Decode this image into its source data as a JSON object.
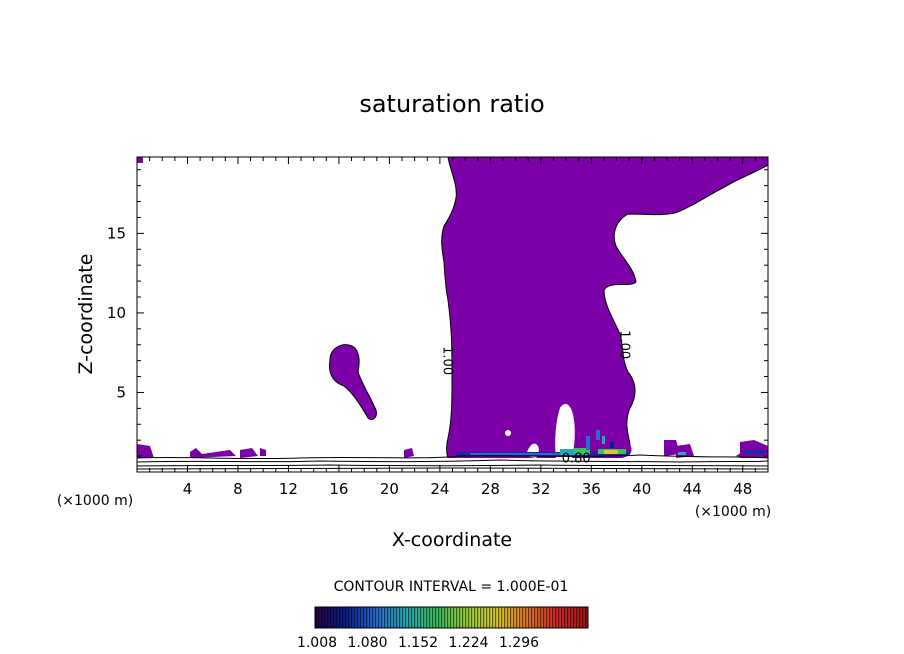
{
  "chart_data": {
    "type": "contour",
    "title": "saturation ratio",
    "xlabel": "X-coordinate",
    "ylabel": "Z-coordinate",
    "x_unit_label": "(×1000 m)",
    "xlim": [
      0,
      50
    ],
    "ylim": [
      0,
      19.8
    ],
    "x_ticks": [
      4,
      8,
      12,
      16,
      20,
      24,
      28,
      32,
      36,
      40,
      44,
      48
    ],
    "y_ticks": [
      5,
      10,
      15
    ],
    "fill_color": "#7b00a8",
    "contour_labels": [
      {
        "text": "1.00",
        "x": 24.3,
        "y": 7.0
      },
      {
        "text": "1.00",
        "x": 38.3,
        "y": 8.0
      },
      {
        "text": "0.80",
        "x": 34.8,
        "y": 0.6
      }
    ],
    "interval_text": "CONTOUR INTERVAL = 1.000E-01",
    "colorbar": {
      "tick_labels": [
        "1.008",
        "1.080",
        "1.152",
        "1.224",
        "1.296"
      ],
      "colors": [
        "#2a0040",
        "#0a1e8c",
        "#2a6ad0",
        "#2aa8b0",
        "#3ac060",
        "#96d03c",
        "#d8c828",
        "#e07824",
        "#d02828",
        "#a01818"
      ]
    }
  }
}
